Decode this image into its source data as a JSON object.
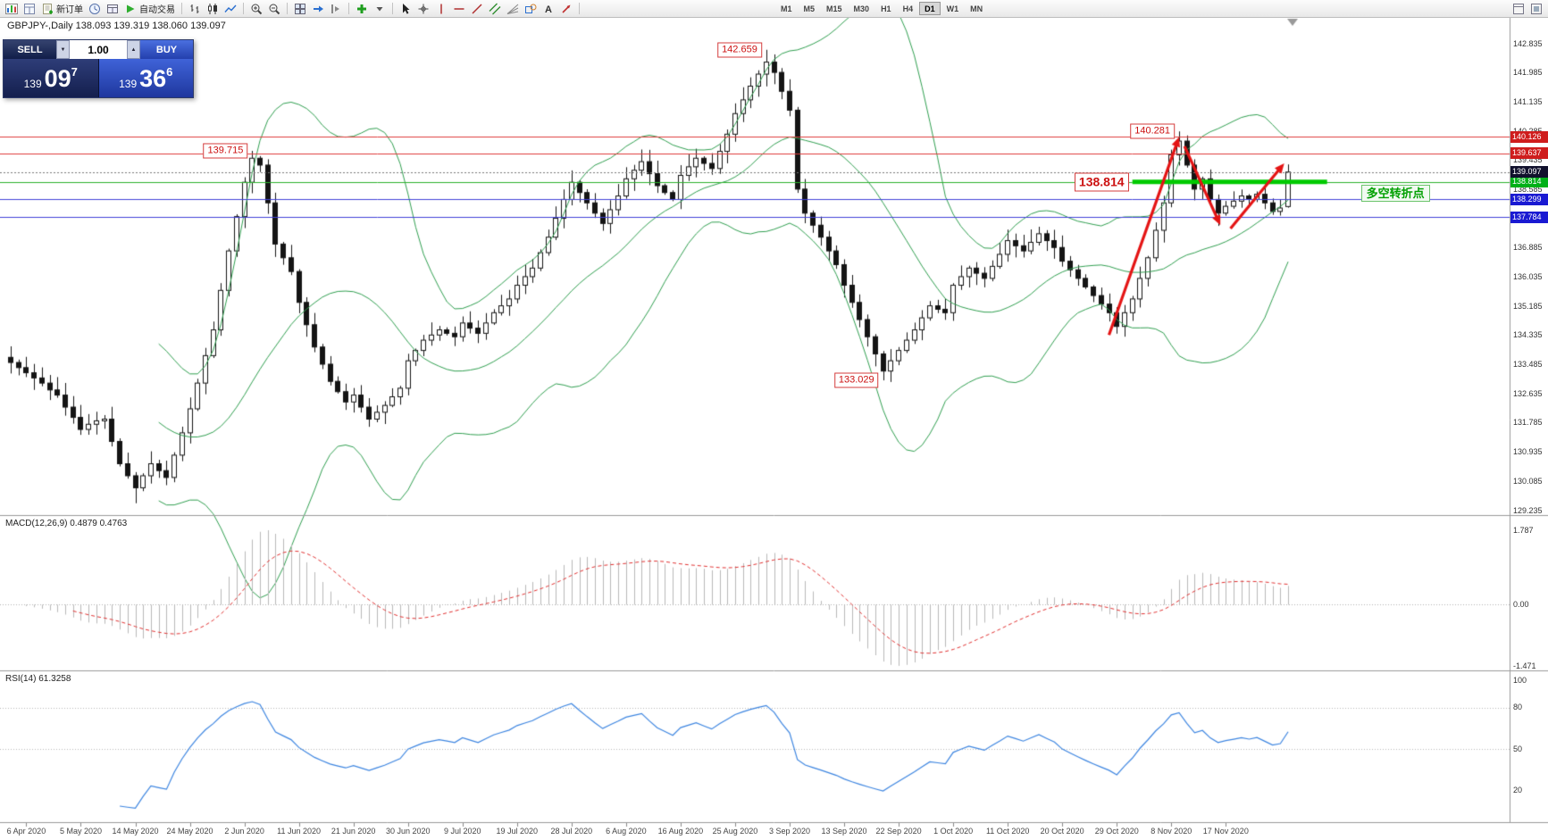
{
  "toolbar": {
    "items": [
      {
        "icon": "new-chart-icon"
      },
      {
        "icon": "chart-profiles-icon"
      },
      {
        "icon": "new-order-icon",
        "label": "新订单"
      },
      {
        "icon": "market-watch-icon"
      },
      {
        "icon": "data-window-icon"
      },
      {
        "icon": "autotrade-icon",
        "label": "自动交易"
      },
      {
        "sep": true
      },
      {
        "icon": "bar-chart-icon"
      },
      {
        "icon": "candlestick-chart-icon"
      },
      {
        "icon": "line-chart-icon"
      },
      {
        "sep": true
      },
      {
        "icon": "zoom-in-icon"
      },
      {
        "icon": "zoom-out-icon"
      },
      {
        "sep": true
      },
      {
        "icon": "tile-windows-icon"
      },
      {
        "icon": "auto-scroll-icon"
      },
      {
        "icon": "chart-shift-icon"
      },
      {
        "sep": true
      },
      {
        "icon": "indicators-icon"
      },
      {
        "icon": "dropdown-icon"
      },
      {
        "sep": true
      },
      {
        "icon": "cursor-icon"
      },
      {
        "icon": "crosshair-icon"
      },
      {
        "icon": "vertical-line-icon"
      },
      {
        "icon": "horizontal-line-icon"
      },
      {
        "icon": "trendline-icon"
      },
      {
        "icon": "channel-icon"
      },
      {
        "icon": "fibonacci-icon"
      },
      {
        "icon": "shapes-icon"
      },
      {
        "icon": "text-icon"
      },
      {
        "icon": "arrows-icon"
      },
      {
        "sep": true
      }
    ],
    "timeframes": [
      {
        "label": "M1"
      },
      {
        "label": "M5"
      },
      {
        "label": "M15"
      },
      {
        "label": "M30"
      },
      {
        "label": "H1"
      },
      {
        "label": "H4"
      },
      {
        "label": "D1",
        "active": true
      },
      {
        "label": "W1"
      },
      {
        "label": "MN"
      }
    ],
    "right_items": [
      {
        "icon": "layout-icon"
      },
      {
        "icon": "fullscreen-icon"
      }
    ]
  },
  "chart": {
    "title": "GBPJPY-,Daily 138.093 139.319 138.060 139.097"
  },
  "trade_panel": {
    "sell_label": "SELL",
    "buy_label": "BUY",
    "volume": "1.00",
    "bid": {
      "prefix": "139",
      "big": "09",
      "sup": "7"
    },
    "ask": {
      "prefix": "139",
      "big": "36",
      "sup": "6"
    },
    "icons": {
      "volume_down": "▼",
      "volume_up": "▲"
    }
  },
  "panes": {
    "macd": {
      "title": "MACD(12,26,9) 0.4879 0.4763"
    },
    "rsi": {
      "title": "RSI(14) 61.3258"
    }
  },
  "turning_point": {
    "text": "多空转折点",
    "color": "#00a000"
  },
  "levels": [
    {
      "price": 140.126,
      "line_color": "#de3b3b",
      "tag_bg": "#cf1d1d"
    },
    {
      "price": 139.637,
      "line_color": "#de3b3b",
      "tag_bg": "#cf1d1d"
    },
    {
      "price": 138.814,
      "line_color": "#2bb12b",
      "tag_bg": "#00b018"
    },
    {
      "price": 138.299,
      "line_color": "#4040d8",
      "tag_bg": "#1a1ad2"
    },
    {
      "price": 137.784,
      "line_color": "#4040d8",
      "tag_bg": "#1a1ad2"
    }
  ],
  "current_price": 139.097,
  "green_segment": {
    "price": 138.814,
    "from_bar": 144,
    "to_bar": 169,
    "color": "#00ca00",
    "width": 5
  },
  "annotations": [
    {
      "text": "142.659",
      "bar": 97,
      "price": 142.659,
      "side": "left",
      "size": "normal"
    },
    {
      "text": "139.715",
      "bar": 31,
      "price": 139.715,
      "side": "left",
      "size": "normal"
    },
    {
      "text": "140.281",
      "bar": 150,
      "price": 140.281,
      "side": "left",
      "size": "normal"
    },
    {
      "text": "138.814",
      "bar": 136,
      "price": 138.814,
      "side": "right",
      "size": "large"
    },
    {
      "text": "133.029",
      "bar": 112,
      "price": 133.029,
      "side": "left",
      "size": "normal"
    }
  ],
  "trend_arrows": [
    {
      "from_bar": 141,
      "from_price": 134.35,
      "to_bar": 150,
      "to_price": 140.12
    },
    {
      "from_bar": 150.7,
      "from_price": 139.85,
      "to_bar": 155.3,
      "to_price": 137.55
    },
    {
      "from_bar": 156.6,
      "from_price": 137.45,
      "to_bar": 163.5,
      "to_price": 139.35
    }
  ],
  "chart_data": {
    "type": "candlestick",
    "symbol": "GBPJPY",
    "timeframe": "Daily",
    "ohlc_display": {
      "open": "138.093",
      "high": "139.319",
      "low": "138.060",
      "close": "139.097"
    },
    "closes": [
      133.55,
      133.4,
      133.25,
      133.1,
      132.95,
      132.75,
      132.6,
      132.25,
      131.95,
      131.6,
      131.75,
      131.85,
      131.9,
      131.25,
      130.6,
      130.25,
      129.9,
      130.25,
      130.6,
      130.4,
      130.2,
      130.85,
      131.5,
      132.2,
      132.95,
      133.75,
      134.5,
      135.65,
      136.8,
      137.8,
      138.8,
      139.5,
      139.3,
      138.2,
      137.0,
      136.6,
      136.2,
      135.3,
      134.65,
      134.0,
      133.5,
      133.0,
      132.7,
      132.4,
      132.6,
      132.25,
      131.9,
      132.1,
      132.3,
      132.55,
      132.8,
      133.6,
      133.9,
      134.2,
      134.35,
      134.5,
      134.4,
      134.3,
      134.7,
      134.55,
      134.4,
      134.7,
      135.0,
      135.2,
      135.4,
      135.8,
      136.05,
      136.3,
      136.75,
      137.2,
      137.75,
      138.3,
      138.8,
      138.5,
      138.2,
      137.9,
      137.6,
      138.0,
      138.4,
      138.9,
      139.15,
      139.4,
      139.05,
      138.7,
      138.5,
      138.3,
      139.0,
      139.25,
      139.5,
      139.35,
      139.2,
      139.7,
      140.2,
      140.8,
      141.2,
      141.6,
      141.95,
      142.3,
      142.0,
      141.45,
      140.9,
      138.6,
      137.9,
      137.55,
      137.2,
      136.8,
      136.4,
      135.8,
      135.3,
      134.8,
      134.3,
      133.8,
      133.3,
      133.6,
      133.9,
      134.2,
      134.5,
      134.85,
      135.2,
      135.1,
      135.0,
      135.8,
      136.05,
      136.3,
      136.15,
      136.0,
      136.35,
      136.7,
      137.1,
      136.95,
      136.8,
      137.05,
      137.3,
      137.1,
      136.9,
      136.5,
      136.25,
      136.0,
      135.75,
      135.5,
      135.25,
      135.0,
      134.6,
      135.0,
      135.4,
      136.0,
      136.6,
      137.4,
      138.2,
      139.6,
      140.0,
      139.3,
      138.6,
      138.9,
      138.3,
      137.9,
      138.1,
      138.25,
      138.4,
      138.3,
      138.45,
      138.2,
      137.95,
      138.05,
      139.097
    ],
    "extremes": {
      "16": {
        "low": 129.45
      },
      "31": {
        "high": 139.715
      },
      "97": {
        "high": 142.659
      },
      "112": {
        "low": 133.029
      },
      "150": {
        "high": 140.281
      },
      "164": {
        "open": 138.093,
        "high": 139.319,
        "low": 138.06,
        "close": 139.097
      }
    },
    "x_labels": [
      "6 Apr 2020",
      "5 May 2020",
      "14 May 2020",
      "24 May 2020",
      "2 Jun 2020",
      "11 Jun 2020",
      "21 Jun 2020",
      "30 Jun 2020",
      "9 Jul 2020",
      "19 Jul 2020",
      "28 Jul 2020",
      "6 Aug 2020",
      "16 Aug 2020",
      "25 Aug 2020",
      "3 Sep 2020",
      "13 Sep 2020",
      "22 Sep 2020",
      "1 Oct 2020",
      "11 Oct 2020",
      "20 Oct 2020",
      "29 Oct 2020",
      "8 Nov 2020",
      "17 Nov 2020"
    ],
    "y_ticks": [
      142.835,
      141.985,
      141.135,
      140.285,
      139.435,
      138.585,
      137.735,
      136.885,
      136.035,
      135.185,
      134.335,
      133.485,
      132.635,
      131.785,
      130.935,
      130.085,
      129.235
    ],
    "indicators": {
      "bollinger": {
        "period": 20,
        "deviation": 2,
        "color": "#2f9e4f"
      },
      "macd": {
        "fast": 12,
        "slow": 26,
        "signal": 9,
        "main_value": 0.4879,
        "signal_value": 0.4763,
        "axis_labels": [
          1.787,
          0,
          -1.471
        ],
        "hist_color": "#b8b8b8",
        "signal_color": "#e03030"
      },
      "rsi": {
        "period": 14,
        "value": 61.3258,
        "axis_labels": [
          100,
          80,
          50,
          20
        ],
        "levels": [
          80,
          50
        ],
        "color": "#3d85e0"
      }
    }
  }
}
